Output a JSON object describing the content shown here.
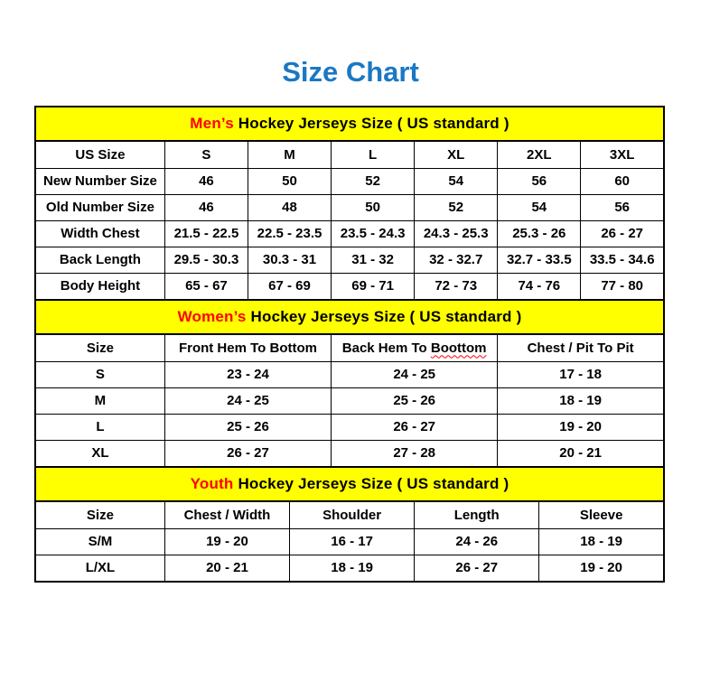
{
  "page": {
    "title": "Size Chart"
  },
  "colors": {
    "title_blue": "#1a78c4",
    "band_bg": "#ffff00",
    "accent_red": "#ff0000",
    "border": "#000000"
  },
  "sections": [
    {
      "id": "mens",
      "band": {
        "highlight": "Men’s",
        "rest": " Hockey Jerseys Size ( US standard )"
      },
      "header_row": [
        "US Size",
        "S",
        "M",
        "L",
        "XL",
        "2XL",
        "3XL"
      ],
      "rows": [
        [
          "New Number Size",
          "46",
          "50",
          "52",
          "54",
          "56",
          "60"
        ],
        [
          "Old Number Size",
          "46",
          "48",
          "50",
          "52",
          "54",
          "56"
        ],
        [
          "Width Chest",
          "21.5 - 22.5",
          "22.5 - 23.5",
          "23.5 - 24.3",
          "24.3 - 25.3",
          "25.3 - 26",
          "26 - 27"
        ],
        [
          "Back Length",
          "29.5 - 30.3",
          "30.3 - 31",
          "31 - 32",
          "32 - 32.7",
          "32.7 - 33.5",
          "33.5 - 34.6"
        ],
        [
          "Body Height",
          "65 - 67",
          "67 - 69",
          "69 - 71",
          "72 - 73",
          "74 - 76",
          "77 - 80"
        ]
      ]
    },
    {
      "id": "womens",
      "band": {
        "highlight": "Women’s",
        "rest": " Hockey Jerseys Size ( US standard )"
      },
      "header_row": [
        "Size",
        "Front Hem To Bottom",
        "Back Hem To Boottom",
        "Chest / Pit To Pit"
      ],
      "spellcheck": {
        "column": 2,
        "word": "Boottom"
      },
      "rows": [
        [
          "S",
          "23 - 24",
          "24 - 25",
          "17 - 18"
        ],
        [
          "M",
          "24 - 25",
          "25 - 26",
          "18 - 19"
        ],
        [
          "L",
          "25 - 26",
          "26 - 27",
          "19 - 20"
        ],
        [
          "XL",
          "26 - 27",
          "27 - 28",
          "20 - 21"
        ]
      ]
    },
    {
      "id": "youth",
      "band": {
        "highlight": "Youth",
        "rest": " Hockey Jerseys Size ( US standard )"
      },
      "header_row": [
        "Size",
        "Chest / Width",
        "Shoulder",
        "Length",
        "Sleeve"
      ],
      "rows": [
        [
          "S/M",
          "19 - 20",
          "16 - 17",
          "24 - 26",
          "18 - 19"
        ],
        [
          "L/XL",
          "20 - 21",
          "18 - 19",
          "26 - 27",
          "19 - 20"
        ]
      ]
    }
  ]
}
